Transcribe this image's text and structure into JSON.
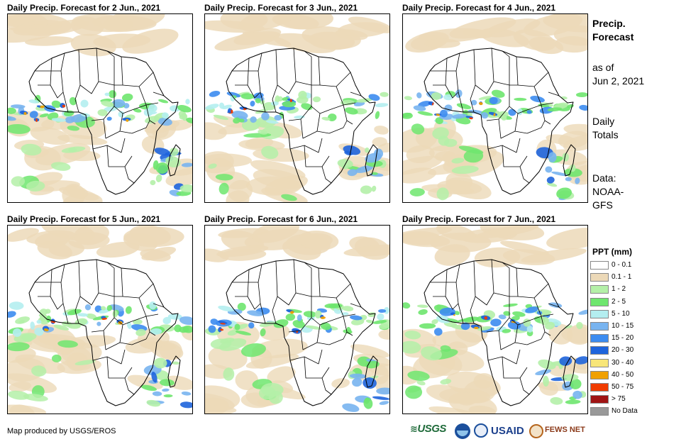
{
  "panels": [
    {
      "title": "Daily Precip. Forecast for 2 Jun., 2021",
      "intensity": 1.0
    },
    {
      "title": "Daily Precip. Forecast for 3 Jun., 2021",
      "intensity": 0.85
    },
    {
      "title": "Daily Precip. Forecast for 4 Jun., 2021",
      "intensity": 0.9
    },
    {
      "title": "Daily Precip. Forecast for 5 Jun., 2021",
      "intensity": 0.8
    },
    {
      "title": "Daily Precip. Forecast for 6 Jun., 2021",
      "intensity": 0.95
    },
    {
      "title": "Daily Precip. Forecast for 7 Jun., 2021",
      "intensity": 0.85
    }
  ],
  "sidebar": {
    "title_line1": "Precip.",
    "title_line2": "Forecast",
    "asof_line1": "as of",
    "asof_line2": "Jun 2, 2021",
    "daily_line1": "Daily",
    "daily_line2": "Totals",
    "data_line1": "Data:",
    "data_line2": "NOAA-",
    "data_line3": "GFS"
  },
  "legend": {
    "title": "PPT (mm)",
    "items": [
      {
        "label": "0 - 0.1",
        "color": "#ffffff"
      },
      {
        "label": "0.1 - 1",
        "color": "#ecd9b8"
      },
      {
        "label": "1 - 2",
        "color": "#b4f0a8"
      },
      {
        "label": "2 - 5",
        "color": "#6ee66e"
      },
      {
        "label": "5 - 10",
        "color": "#b4eef0"
      },
      {
        "label": "10 - 15",
        "color": "#78b4f0"
      },
      {
        "label": "15 - 20",
        "color": "#3c8cf0"
      },
      {
        "label": "20 - 30",
        "color": "#1e64dc"
      },
      {
        "label": "30 - 40",
        "color": "#f8e678"
      },
      {
        "label": "40 - 50",
        "color": "#f0a000"
      },
      {
        "label": "50 - 75",
        "color": "#f03c00"
      },
      {
        "label": "> 75",
        "color": "#a01414"
      },
      {
        "label": "No Data",
        "color": "#999999"
      }
    ]
  },
  "footer": {
    "credit": "Map produced by USGS/EROS",
    "logo_usgs": "USGS",
    "logo_usaid": "USAID",
    "logo_fewsnet": "FEWS NET"
  }
}
